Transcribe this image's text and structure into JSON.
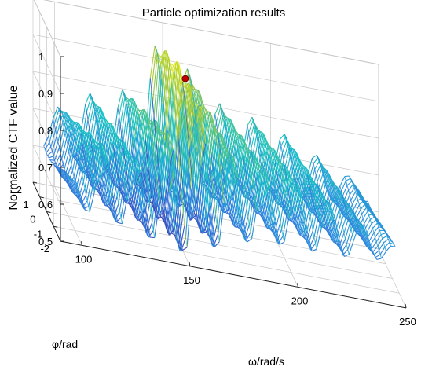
{
  "chart_data": {
    "type": "surface3d",
    "title": "Particle optimization results",
    "xlabel": "ω/rad/s",
    "ylabel": "φ/rad",
    "zlabel": "Normalized CTF value",
    "xlim": [
      90,
      250
    ],
    "ylim": [
      -2,
      2
    ],
    "zlim": [
      0.5,
      1
    ],
    "xticks": [
      "100",
      "150",
      "200",
      "250"
    ],
    "yticks": [
      "-2",
      "-1",
      "0",
      "1",
      "2"
    ],
    "zticks": [
      "0.5",
      "0.6",
      "0.7",
      "0.8",
      "0.9",
      "1"
    ],
    "grid": true,
    "colormap": "parula",
    "colors": {
      "low": "#3e26a8",
      "mid_low": "#2e87e0",
      "mid": "#17c2c5",
      "mid_high": "#a4c63d",
      "high": "#f9fb0e",
      "optimum_marker": "#c00000"
    },
    "surface_profile": {
      "omega": [
        95,
        110,
        125,
        140,
        150,
        160,
        170,
        185,
        200,
        215,
        230,
        245
      ],
      "ctf_peak_along_phi": [
        0.67,
        0.78,
        0.76,
        0.85,
        0.98,
        0.9,
        0.82,
        0.8,
        0.78,
        0.74,
        0.7,
        0.66
      ],
      "ctf_min_along_phi": [
        0.6,
        0.58,
        0.56,
        0.53,
        0.52,
        0.55,
        0.58,
        0.6,
        0.6,
        0.6,
        0.61,
        0.62
      ]
    },
    "optimum_point": {
      "omega": 150,
      "phi": -1.3,
      "value": 0.98
    }
  }
}
